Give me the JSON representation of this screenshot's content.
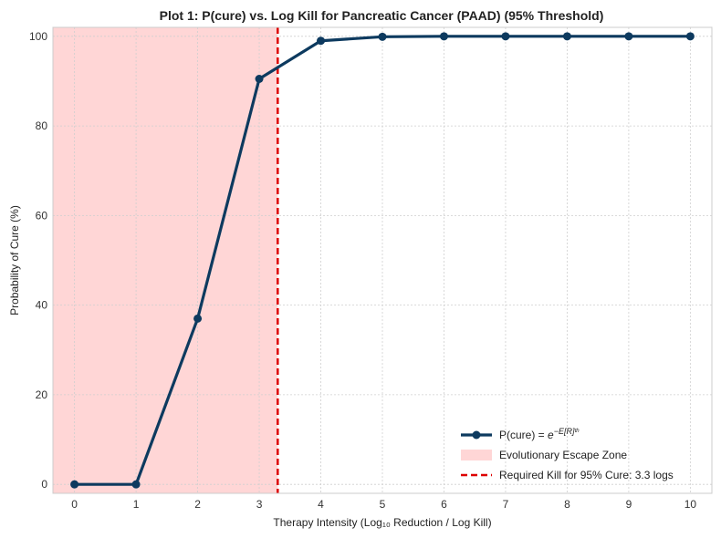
{
  "chart_data": {
    "type": "line",
    "title": "Plot 1: P(cure) vs. Log Kill for Pancreatic Cancer (PAAD) (95% Threshold)",
    "xlabel": "Therapy Intensity (Log₁₀ Reduction / Log Kill)",
    "ylabel": "Probability of Cure (%)",
    "xlim": [
      -0.35,
      10.35
    ],
    "ylim": [
      -2,
      102
    ],
    "x_ticks": [
      0,
      1,
      2,
      3,
      4,
      5,
      6,
      7,
      8,
      9,
      10
    ],
    "y_ticks": [
      0,
      20,
      40,
      60,
      80,
      100
    ],
    "grid": true,
    "legend_position": "bottom-right",
    "series": [
      {
        "name": "P(cure) = e^{-E[R]}",
        "legend_base": "P(cure) = ",
        "legend_math": "e",
        "legend_sup": "−E[R]ᵗʰ",
        "x": [
          0,
          1,
          2,
          3,
          4,
          5,
          6,
          7,
          8,
          9,
          10
        ],
        "y": [
          0,
          0,
          37,
          90.5,
          99,
          99.9,
          100,
          100,
          100,
          100,
          100
        ],
        "color": "#0d3a5f"
      }
    ],
    "shaded_region": {
      "name": "Evolutionary Escape Zone",
      "x_start": -0.35,
      "x_end": 3.3,
      "color": "#ffc0c0"
    },
    "threshold_line": {
      "name": "Required Kill for 95% Cure: 3.3 logs",
      "x": 3.3,
      "color": "#dd0000"
    }
  }
}
